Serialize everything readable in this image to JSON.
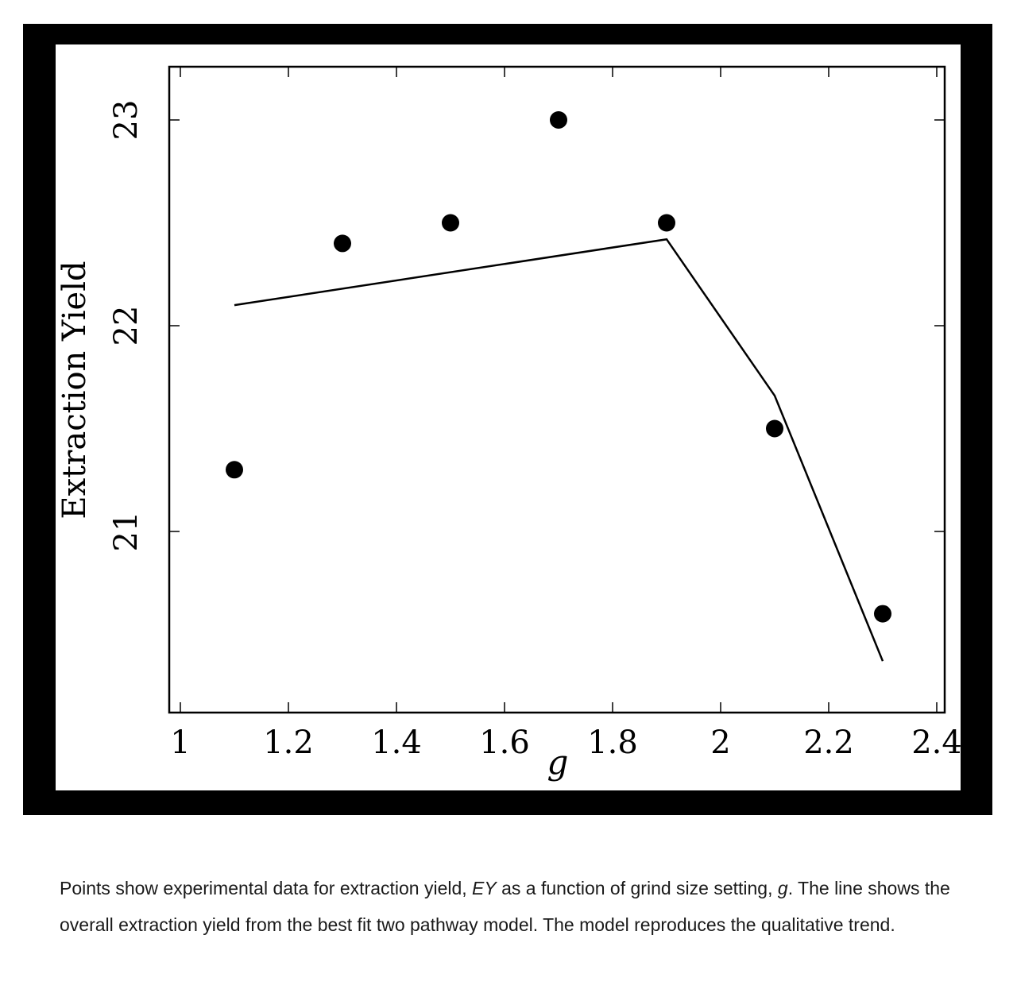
{
  "chart_data": {
    "type": "scatter",
    "xlabel": "g",
    "ylabel": "Extraction Yield",
    "xlim": [
      1,
      2.4
    ],
    "ylim": [
      20.1,
      23.25
    ],
    "x_ticks": [
      1,
      1.2,
      1.4,
      1.6,
      1.8,
      2,
      2.2,
      2.4
    ],
    "x_tick_labels": [
      "1",
      "1.2",
      "1.4",
      "1.6",
      "1.8",
      "2",
      "2.2",
      "2.4"
    ],
    "y_ticks": [
      21,
      22,
      23
    ],
    "y_tick_labels": [
      "21",
      "22",
      "23"
    ],
    "grid": false,
    "series": [
      {
        "kind": "points",
        "x": [
          1.1,
          1.3,
          1.5,
          1.7,
          1.9,
          2.1,
          2.3
        ],
        "y": [
          21.3,
          22.4,
          22.5,
          23.0,
          22.5,
          21.5,
          20.6
        ]
      },
      {
        "kind": "line",
        "x": [
          1.1,
          1.9,
          2.1,
          2.3
        ],
        "y": [
          22.1,
          22.42,
          21.66,
          20.37
        ]
      }
    ]
  },
  "caption": {
    "part1": "Points show experimental data for extraction yield, ",
    "ey": "EY",
    "part2": " as a function of grind size setting, ",
    "g": "g",
    "part3": ". The line shows the overall extraction yield from the best fit two pathway model. The model reproduces the qualitative trend."
  }
}
